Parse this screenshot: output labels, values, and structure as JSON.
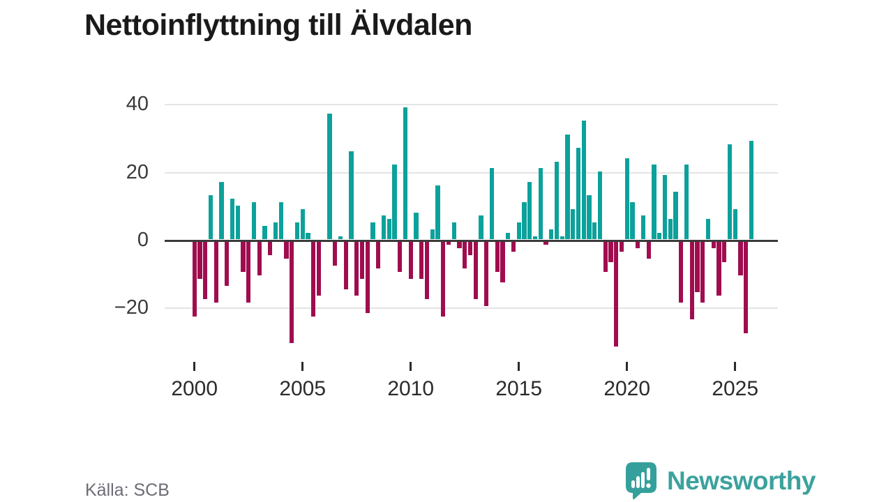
{
  "title": "Nettoinflyttning till Älvdalen",
  "source": "Källa: SCB",
  "branding": {
    "name": "Newsworthy",
    "icon": "newsworthy-speech-bubble-chart-icon"
  },
  "colors": {
    "positive": "#0ca19b",
    "negative": "#a00d4f",
    "axis_line": "#3a3a3a",
    "gridline": "#e4e4e4",
    "tick_text": "#2b2b2b",
    "source_text": "#6b6c74",
    "brand_teal": "#3ba29d",
    "background": "#ffffff"
  },
  "chart_data": {
    "type": "bar",
    "title": "Nettoinflyttning till Älvdalen",
    "frequency": "quarterly",
    "start": "2000-Q1",
    "end": "2025-Q4",
    "xlabel": "",
    "ylabel": "",
    "ylim": [
      -35,
      45
    ],
    "y_ticks": [
      40,
      20,
      0,
      -20
    ],
    "y_tick_labels": [
      "40",
      "20",
      "0",
      "−20"
    ],
    "x_ticks": [
      2000,
      2005,
      2010,
      2015,
      2020,
      2025
    ],
    "grid": "horizontal",
    "legend": "none",
    "values": [
      -22,
      -11,
      -17,
      13,
      -18,
      17,
      -13,
      12,
      10,
      -9,
      -18,
      11,
      -10,
      4,
      -4,
      5,
      11,
      -5,
      -30,
      5,
      9,
      2,
      -22,
      -16,
      0,
      37,
      -7,
      1,
      -14,
      26,
      -16,
      -11,
      -21,
      5,
      -8,
      7,
      6,
      22,
      -9,
      39,
      -11,
      8,
      -11,
      -17,
      3,
      16,
      -22,
      -1,
      5,
      -2,
      -8,
      -4,
      -17,
      7,
      -19,
      21,
      -9,
      -12,
      2,
      -3,
      5,
      11,
      17,
      1,
      21,
      -1,
      3,
      23,
      1,
      31,
      9,
      27,
      35,
      13,
      5,
      20,
      -9,
      -6,
      -31,
      -3,
      24,
      11,
      -2,
      7,
      -5,
      22,
      2,
      19,
      6,
      14,
      -18,
      22,
      -23,
      -15,
      -18,
      6,
      -2,
      -16,
      -6,
      28,
      9,
      -10,
      -27,
      29
    ]
  }
}
